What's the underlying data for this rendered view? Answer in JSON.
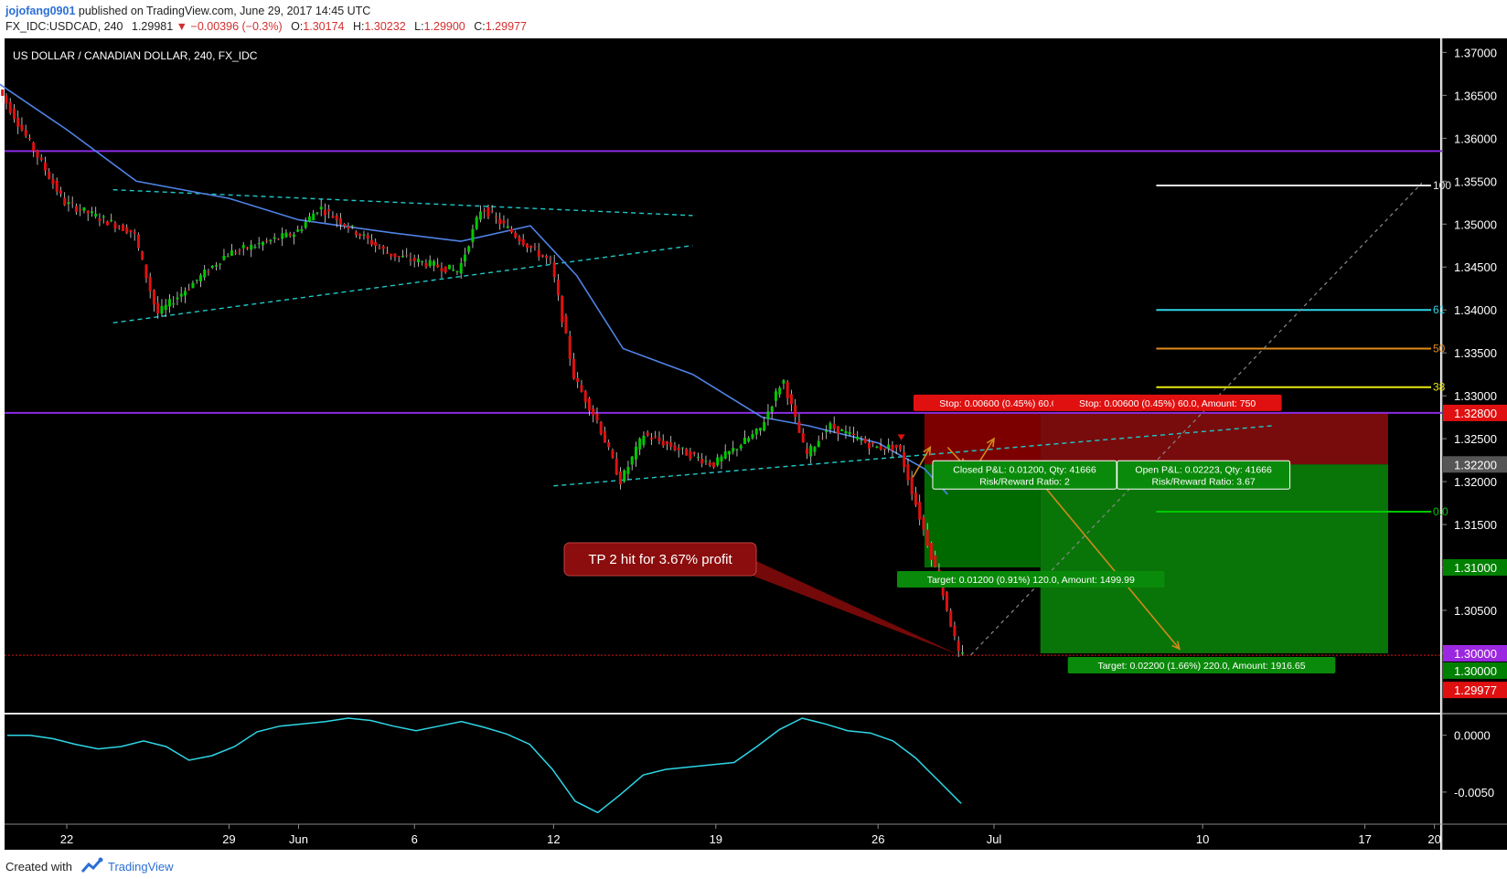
{
  "header": {
    "author": "jojofang0901",
    "published": "published on TradingView.com, June 29, 2017 14:45 UTC",
    "symbol": "FX_IDC:USDCAD, 240",
    "last": "1.29981",
    "change_arrow": "▼",
    "change": "−0.00396 (−0.3%)",
    "o_label": "O:",
    "o_value": "1.30174",
    "h_label": "H:",
    "h_value": "1.30232",
    "l_label": "L:",
    "l_value": "1.29900",
    "c_label": "C:",
    "c_value": "1.29977"
  },
  "footer": {
    "created": "Created with",
    "brand": "TradingView"
  },
  "colors": {
    "background": "#000000",
    "bull": "#00c800",
    "bear": "#e01010",
    "ma": "#4f83e6",
    "oscillator": "#2ed6e6",
    "resistance": "#8a2be2",
    "trendline": "#1fc8c8",
    "stop_zone": "#8b0000",
    "target_zone": "#007000",
    "annotation": "#8b0d0d",
    "projection": "#d08a1a"
  },
  "chart_data": {
    "type": "candlestick",
    "title": "US DOLLAR / CANADIAN DOLLAR, 240, FX_IDC",
    "timeframe": "240",
    "ylim": [
      1.2935,
      1.371
    ],
    "y_ticks": [
      "1.37000",
      "1.36500",
      "1.36000",
      "1.35500",
      "1.35000",
      "1.34500",
      "1.34000",
      "1.33500",
      "1.33000",
      "1.32500",
      "1.32000",
      "1.31500",
      "1.31000",
      "1.30500",
      "1.30000"
    ],
    "x_ticks": [
      "22",
      "29",
      "Jun",
      "6",
      "12",
      "19",
      "26",
      "Jul",
      "10",
      "17",
      "20"
    ],
    "price_series_sketch": [
      [
        "2017-05-19",
        1.3665
      ],
      [
        "2017-05-22",
        1.3525
      ],
      [
        "2017-05-25",
        1.349
      ],
      [
        "2017-05-26",
        1.3395
      ],
      [
        "2017-05-29",
        1.3465
      ],
      [
        "2017-06-01",
        1.349
      ],
      [
        "2017-06-02",
        1.352
      ],
      [
        "2017-06-05",
        1.3465
      ],
      [
        "2017-06-08",
        1.3445
      ],
      [
        "2017-06-09",
        1.352
      ],
      [
        "2017-06-11",
        1.3475
      ],
      [
        "2017-06-12",
        1.3455
      ],
      [
        "2017-06-13",
        1.332
      ],
      [
        "2017-06-14",
        1.327
      ],
      [
        "2017-06-15",
        1.32
      ],
      [
        "2017-06-16",
        1.3255
      ],
      [
        "2017-06-19",
        1.322
      ],
      [
        "2017-06-21",
        1.326
      ],
      [
        "2017-06-22",
        1.332
      ],
      [
        "2017-06-23",
        1.323
      ],
      [
        "2017-06-24",
        1.3265
      ],
      [
        "2017-06-26",
        1.324
      ],
      [
        "2017-06-27",
        1.324
      ],
      [
        "2017-06-28",
        1.315
      ],
      [
        "2017-06-29",
        1.306
      ],
      [
        "2017-06-29 14:00",
        1.29977
      ]
    ],
    "moving_average_sketch": [
      [
        "2017-05-19",
        1.3665
      ],
      [
        "2017-05-22",
        1.361
      ],
      [
        "2017-05-25",
        1.355
      ],
      [
        "2017-05-29",
        1.353
      ],
      [
        "2017-06-01",
        1.3505
      ],
      [
        "2017-06-05",
        1.349
      ],
      [
        "2017-06-08",
        1.348
      ],
      [
        "2017-06-11",
        1.3498
      ],
      [
        "2017-06-13",
        1.344
      ],
      [
        "2017-06-15",
        1.3355
      ],
      [
        "2017-06-18",
        1.3325
      ],
      [
        "2017-06-21",
        1.3275
      ],
      [
        "2017-06-23",
        1.3265
      ],
      [
        "2017-06-26",
        1.3245
      ],
      [
        "2017-06-28",
        1.3215
      ],
      [
        "2017-06-29",
        1.3185
      ]
    ],
    "horizontal_levels": [
      {
        "price": 1.3585,
        "label": "1.35850",
        "color": "#8a2be2"
      },
      {
        "price": 1.328,
        "label": "1.32800",
        "color": "#8a2be2"
      },
      {
        "price": 1.29977,
        "label": "1.29977",
        "color": "#e01010"
      }
    ],
    "price_labels": [
      {
        "price": 1.328,
        "label": "1.32800",
        "color": "#e01010"
      },
      {
        "price": 1.322,
        "label": "1.32200",
        "color": "#555555"
      },
      {
        "price": 1.31,
        "label": "1.31000",
        "color": "#008000"
      },
      {
        "price": 1.3,
        "label": "1.30000",
        "color": "#9c27e0"
      },
      {
        "price": 1.3,
        "label": "1.30000",
        "color": "#008000"
      },
      {
        "price": 1.29977,
        "label": "1.29977",
        "color": "#e01010"
      }
    ],
    "trendlines": [
      {
        "from": [
          "2017-05-24",
          1.354
        ],
        "to": [
          "2017-06-18",
          1.351
        ]
      },
      {
        "from": [
          "2017-05-24",
          1.3385
        ],
        "to": [
          "2017-06-18",
          1.3475
        ]
      },
      {
        "from": [
          "2017-06-12",
          1.3195
        ],
        "to": [
          "2017-07-13",
          1.3265
        ]
      }
    ],
    "fibonacci": [
      {
        "level": "100",
        "price": 1.3545,
        "color": "#e8e8e8"
      },
      {
        "level": "61",
        "price": 1.34,
        "color": "#2ed6e6"
      },
      {
        "level": "50",
        "price": 1.3355,
        "color": "#e08a1a"
      },
      {
        "level": "38",
        "price": 1.331,
        "color": "#e8e810"
      },
      {
        "level": "0.0",
        "price": 1.3165,
        "color": "#00c800"
      }
    ],
    "positions": [
      {
        "stop_label": "Stop: 0.00600 (0.45%) 60.0, Amount: 750",
        "pnl_label": "Closed P&L: 0.01200, Qty: 41666",
        "ratio_label": "Risk/Reward Ratio: 2",
        "target_label": "Target: 0.01200 (0.91%) 120.0, Amount: 1499.99",
        "entry": 1.322,
        "stop": 1.328,
        "target": 1.31
      },
      {
        "stop_label": "Stop: 0.00600 (0.45%) 60.0, Amount: 750",
        "pnl_label": "Open P&L: 0.02223, Qty: 41666",
        "ratio_label": "Risk/Reward Ratio: 3.67",
        "target_label": "Target: 0.02200 (1.66%) 220.0, Amount: 1916.65",
        "entry": 1.322,
        "stop": 1.328,
        "target": 1.3
      }
    ],
    "annotation": "TP 2 hit for 3.67% profit",
    "oscillator": {
      "y_ticks": [
        "0.0000",
        "-0.0050"
      ],
      "ylim": [
        -0.0075,
        0.0015
      ],
      "series_sketch": [
        0.0,
        0.0,
        -0.0003,
        -0.0008,
        -0.0012,
        -0.001,
        -0.0005,
        -0.001,
        -0.0022,
        -0.0018,
        -0.001,
        0.0003,
        0.0008,
        0.001,
        0.0012,
        0.0015,
        0.0013,
        0.0008,
        0.0004,
        0.0008,
        0.0012,
        0.0007,
        0.0001,
        -0.0008,
        -0.003,
        -0.0058,
        -0.0068,
        -0.0052,
        -0.0035,
        -0.003,
        -0.0028,
        -0.0026,
        -0.0024,
        -0.001,
        0.0005,
        0.0015,
        0.001,
        0.0004,
        0.0002,
        -0.0005,
        -0.002,
        -0.004,
        -0.006
      ]
    }
  }
}
